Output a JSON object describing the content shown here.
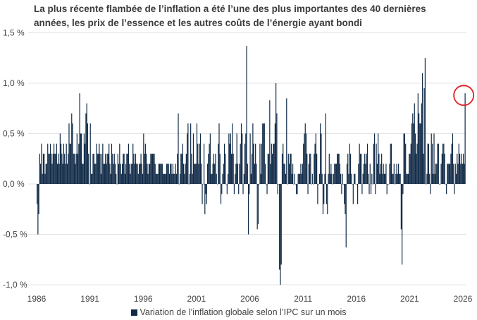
{
  "chart_data": {
    "type": "bar",
    "title": "La plus récente flambée de l’inflation a été l’une des plus importantes des 40 dernières années, les prix de l’essence et les autres coûts de l’énergie ayant bondi",
    "xlabel": "",
    "ylabel": "",
    "x_start": "1986-01",
    "frequency": "monthly",
    "ylim": [
      -1.0,
      1.5
    ],
    "y_ticks": [
      "1,5 %",
      "1,0 %",
      "0,5 %",
      "0,0 %",
      "-0,5 %",
      "-1,0 %"
    ],
    "y_tick_values": [
      1.5,
      1.0,
      0.5,
      0.0,
      -0.5,
      -1.0
    ],
    "x_ticks": [
      "1986",
      "1991",
      "1996",
      "2001",
      "2006",
      "2011",
      "2016",
      "2021",
      "2026"
    ],
    "grid": true,
    "legend_position": "bottom",
    "bar_color": "#102a47",
    "highlight_color": "#e02020",
    "highlight": "last bar circled",
    "series": [
      {
        "name": "Variation de l’inflation globale selon l’IPC sur un mois",
        "values": [
          -0.2,
          -0.5,
          -0.3,
          0.3,
          0.2,
          0.4,
          0.1,
          0.3,
          0.3,
          0.1,
          0.2,
          0.2,
          0.4,
          0.3,
          0.3,
          0.4,
          0.3,
          0.2,
          0.3,
          0.4,
          0.3,
          0.3,
          0.4,
          0.2,
          0.3,
          0.2,
          0.5,
          0.4,
          0.3,
          0.2,
          0.4,
          0.3,
          0.2,
          0.4,
          0.2,
          0.3,
          0.6,
          0.4,
          0.4,
          0.7,
          0.6,
          0.3,
          0.3,
          0.2,
          0.3,
          0.5,
          0.3,
          0.4,
          0.9,
          0.5,
          0.5,
          0.2,
          0.2,
          0.5,
          0.4,
          0.7,
          0.8,
          0.6,
          0.3,
          0.0,
          0.6,
          0.1,
          0.1,
          0.3,
          0.3,
          0.2,
          0.2,
          0.4,
          0.3,
          0.3,
          0.4,
          0.3,
          0.1,
          0.3,
          0.4,
          0.2,
          0.2,
          0.3,
          0.2,
          0.3,
          0.3,
          0.4,
          0.2,
          0.1,
          0.4,
          0.3,
          0.2,
          0.3,
          0.2,
          0.1,
          0.0,
          0.3,
          0.2,
          0.4,
          0.2,
          0.1,
          0.2,
          0.3,
          0.3,
          0.1,
          0.2,
          0.3,
          0.3,
          0.4,
          0.2,
          0.1,
          0.2,
          0.2,
          0.4,
          0.3,
          0.2,
          0.3,
          0.2,
          0.2,
          0.1,
          0.2,
          0.2,
          0.3,
          0.2,
          0.1,
          0.5,
          0.3,
          0.4,
          0.3,
          0.2,
          0.1,
          0.2,
          0.2,
          0.3,
          0.3,
          0.3,
          0.3,
          0.3,
          0.2,
          0.1,
          0.1,
          0.1,
          0.2,
          0.2,
          0.2,
          0.2,
          0.2,
          0.1,
          0.1,
          0.1,
          0.1,
          0.2,
          0.2,
          0.2,
          0.1,
          0.2,
          0.2,
          0.1,
          0.2,
          0.1,
          0.1,
          0.2,
          0.1,
          0.3,
          0.7,
          0.0,
          0.1,
          0.3,
          0.3,
          0.4,
          0.2,
          0.1,
          0.2,
          0.3,
          0.5,
          0.6,
          0.0,
          0.1,
          0.6,
          0.3,
          0.1,
          0.5,
          0.2,
          0.2,
          0.2,
          0.6,
          0.4,
          0.2,
          0.4,
          0.5,
          0.2,
          -0.2,
          0.0,
          0.4,
          -0.3,
          -0.1,
          -0.2,
          0.2,
          0.3,
          0.4,
          0.5,
          0.1,
          0.1,
          0.2,
          0.3,
          0.2,
          0.3,
          0.1,
          0.0,
          0.4,
          0.6,
          0.3,
          -0.2,
          -0.1,
          0.1,
          0.2,
          0.4,
          0.3,
          0.0,
          -0.1,
          0.1,
          0.5,
          0.4,
          0.5,
          0.3,
          0.6,
          0.3,
          -0.1,
          0.1,
          0.2,
          0.5,
          0.2,
          -0.1,
          0.2,
          0.4,
          0.6,
          0.5,
          -0.1,
          0.1,
          0.4,
          0.5,
          1.37,
          0.2,
          -0.5,
          -0.1,
          0.5,
          0.1,
          0.3,
          0.6,
          0.4,
          0.2,
          0.4,
          0.2,
          -0.45,
          -0.4,
          0.0,
          0.4,
          0.1,
          0.4,
          0.6,
          0.6,
          0.6,
          0.2,
          0.0,
          -0.1,
          0.3,
          0.3,
          0.83,
          0.2,
          0.4,
          0.3,
          0.4,
          0.4,
          0.6,
          1.0,
          0.7,
          -0.1,
          0.0,
          -0.85,
          -1.0,
          -0.8,
          0.3,
          0.4,
          0.2,
          0.2,
          0.1,
          0.85,
          0.0,
          0.3,
          0.2,
          0.3,
          0.3,
          0.1,
          0.2,
          0.0,
          0.1,
          0.0,
          -0.1,
          -0.1,
          0.1,
          0.1,
          0.1,
          0.2,
          0.1,
          0.2,
          0.4,
          0.5,
          0.6,
          0.5,
          0.3,
          -0.1,
          0.2,
          0.3,
          0.3,
          0.0,
          0.1,
          0.0,
          0.3,
          0.4,
          0.5,
          0.3,
          -0.2,
          0.0,
          0.1,
          0.6,
          0.5,
          0.1,
          -0.3,
          -0.2,
          0.1,
          0.7,
          -0.2,
          -0.3,
          0.1,
          0.3,
          0.1,
          0.2,
          0.1,
          0.0,
          0.1,
          0.2,
          0.2,
          0.2,
          0.3,
          0.3,
          0.3,
          0.2,
          0.1,
          -0.1,
          0.1,
          0.0,
          -0.2,
          -0.3,
          -0.63,
          0.2,
          0.3,
          0.1,
          0.4,
          0.3,
          0.1,
          0.0,
          -0.2,
          0.1,
          0.1,
          0.0,
          0.0,
          -0.2,
          0.2,
          0.4,
          0.3,
          0.3,
          -0.1,
          0.1,
          0.2,
          0.3,
          0.2,
          0.3,
          0.4,
          0.1,
          -0.1,
          0.2,
          -0.1,
          0.1,
          0.0,
          0.4,
          0.5,
          -0.1,
          0.4,
          0.2,
          0.5,
          0.3,
          0.1,
          0.2,
          0.3,
          0.1,
          0.2,
          0.1,
          0.1,
          0.2,
          -0.1,
          0.0,
          0.0,
          0.2,
          0.4,
          0.4,
          0.1,
          0.1,
          0.2,
          0.0,
          0.1,
          0.2,
          0.1,
          0.2,
          0.1,
          0.1,
          -0.45,
          -0.8,
          -0.1,
          0.5,
          0.5,
          0.4,
          0.1,
          0.1,
          0.1,
          0.3,
          0.3,
          0.4,
          0.6,
          0.7,
          0.6,
          0.8,
          0.5,
          0.3,
          0.4,
          0.9,
          0.7,
          0.6,
          0.6,
          0.8,
          1.1,
          0.3,
          0.95,
          1.25,
          0.0,
          0.1,
          0.4,
          0.4,
          0.1,
          -0.1,
          0.5,
          0.4,
          0.1,
          0.5,
          0.1,
          0.2,
          0.2,
          0.4,
          0.4,
          0.0,
          0.0,
          0.2,
          0.3,
          0.4,
          0.4,
          0.3,
          0.0,
          -0.1,
          0.2,
          0.2,
          0.2,
          0.2,
          0.3,
          0.4,
          0.5,
          0.2,
          -0.1,
          0.2,
          0.1,
          0.3,
          0.2,
          0.4,
          0.3,
          0.2,
          0.3,
          0.2,
          0.3,
          0.2,
          0.9
        ]
      }
    ]
  }
}
